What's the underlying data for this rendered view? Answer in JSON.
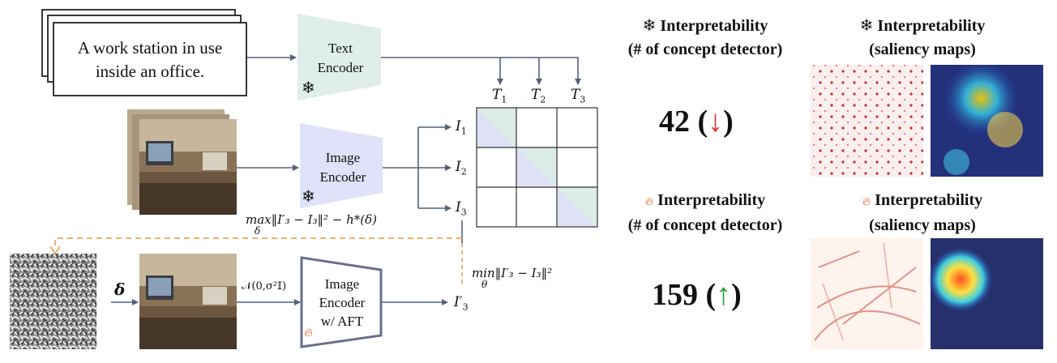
{
  "caption_card": {
    "text": [
      "A work station in use",
      "inside an office."
    ]
  },
  "text_encoder": {
    "lines": [
      "Text",
      "Encoder"
    ],
    "status_icon": "snowflake-icon"
  },
  "image_encoder": {
    "lines": [
      "Image",
      "Encoder"
    ],
    "status_icon": "snowflake-icon"
  },
  "aft_encoder": {
    "lines": [
      "Image",
      "Encoder",
      "w/ AFT"
    ],
    "status_icon": "flame-icon"
  },
  "matrix": {
    "text_labels": [
      "T",
      "T",
      "T"
    ],
    "text_subscripts": [
      "1",
      "2",
      "3"
    ],
    "image_labels": [
      "I",
      "I",
      "I"
    ],
    "image_subscripts": [
      "1",
      "2",
      "3"
    ]
  },
  "formulas": {
    "max_objective": "max‖I′₃ − I₃‖² − h*(δ)",
    "max_sub": "δ",
    "min_objective": "min‖I′₃ − I₃‖²",
    "min_sub": "θ",
    "noise": "𝒩(0,σ²𝕀)",
    "delta": "δ",
    "adv_feature": "I′",
    "adv_feature_sub": "3"
  },
  "interpretability": {
    "frozen_count_title": [
      "Interpretability",
      "(# of concept detector)"
    ],
    "frozen_saliency_title": [
      "Interpretability",
      "(saliency maps)"
    ],
    "frozen_value": "42",
    "frozen_trend": "↓",
    "aft_count_title": [
      "Interpretability",
      "(# of concept detector)"
    ],
    "aft_saliency_title": [
      "Interpretability",
      "(saliency maps)"
    ],
    "aft_value": "159",
    "aft_trend": "↑"
  },
  "colors": {
    "text_encoder": "#dfeeea",
    "image_encoder": "#dfe2f8",
    "arrow": "#55607a",
    "dashed": "#f0b070",
    "down": "#e0302a",
    "up": "#2a9d3a"
  }
}
